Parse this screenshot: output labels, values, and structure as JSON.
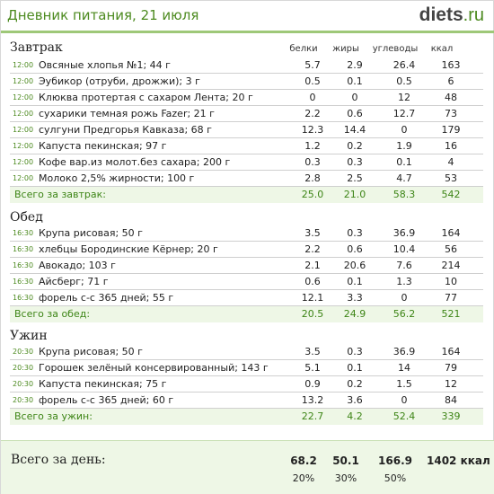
{
  "header": {
    "title": "Дневник питания, 21 июля",
    "logo_main": "diets",
    "logo_domain": ".ru"
  },
  "columns": [
    "белки",
    "жиры",
    "углеводы",
    "ккал"
  ],
  "colors": {
    "accent": "#4c8a1f",
    "total_bg": "#eef7e6"
  },
  "meals": [
    {
      "title": "Завтрак",
      "items": [
        {
          "time": "12:00",
          "name": "Овсяные хлопья №1; 44 г",
          "protein": "5.7",
          "fat": "2.9",
          "carbs": "26.4",
          "kcal": "163"
        },
        {
          "time": "12:00",
          "name": "Эубикор (отруби, дрожжи); 3 г",
          "protein": "0.5",
          "fat": "0.1",
          "carbs": "0.5",
          "kcal": "6"
        },
        {
          "time": "12:00",
          "name": "Клюква протертая с сахаром Лента; 20 г",
          "protein": "0",
          "fat": "0",
          "carbs": "12",
          "kcal": "48"
        },
        {
          "time": "12:00",
          "name": "сухарики темная рожь Fazer; 21 г",
          "protein": "2.2",
          "fat": "0.6",
          "carbs": "12.7",
          "kcal": "73"
        },
        {
          "time": "12:00",
          "name": "сулгуни Предгорья Кавказа; 68 г",
          "protein": "12.3",
          "fat": "14.4",
          "carbs": "0",
          "kcal": "179"
        },
        {
          "time": "12:00",
          "name": "Капуста пекинская; 97 г",
          "protein": "1.2",
          "fat": "0.2",
          "carbs": "1.9",
          "kcal": "16"
        },
        {
          "time": "12:00",
          "name": "Кофе вар.из молот.без сахара; 200 г",
          "protein": "0.3",
          "fat": "0.3",
          "carbs": "0.1",
          "kcal": "4"
        },
        {
          "time": "12:00",
          "name": "Молоко 2,5% жирности; 100 г",
          "protein": "2.8",
          "fat": "2.5",
          "carbs": "4.7",
          "kcal": "53"
        }
      ],
      "total": {
        "label": "Всего за завтрак:",
        "protein": "25.0",
        "fat": "21.0",
        "carbs": "58.3",
        "kcal": "542"
      }
    },
    {
      "title": "Обед",
      "items": [
        {
          "time": "16:30",
          "name": "Крупа рисовая; 50 г",
          "protein": "3.5",
          "fat": "0.3",
          "carbs": "36.9",
          "kcal": "164"
        },
        {
          "time": "16:30",
          "name": "хлебцы Бородинские Кёрнер; 20 г",
          "protein": "2.2",
          "fat": "0.6",
          "carbs": "10.4",
          "kcal": "56"
        },
        {
          "time": "16:30",
          "name": "Авокадо; 103 г",
          "protein": "2.1",
          "fat": "20.6",
          "carbs": "7.6",
          "kcal": "214"
        },
        {
          "time": "16:30",
          "name": "Айсберг; 71 г",
          "protein": "0.6",
          "fat": "0.1",
          "carbs": "1.3",
          "kcal": "10"
        },
        {
          "time": "16:30",
          "name": "форель с-с 365 дней; 55 г",
          "protein": "12.1",
          "fat": "3.3",
          "carbs": "0",
          "kcal": "77"
        }
      ],
      "total": {
        "label": "Всего за обед:",
        "protein": "20.5",
        "fat": "24.9",
        "carbs": "56.2",
        "kcal": "521"
      }
    },
    {
      "title": "Ужин",
      "items": [
        {
          "time": "20:30",
          "name": "Крупа рисовая; 50 г",
          "protein": "3.5",
          "fat": "0.3",
          "carbs": "36.9",
          "kcal": "164"
        },
        {
          "time": "20:30",
          "name": "Горошек зелёный консервированный; 143 г",
          "protein": "5.1",
          "fat": "0.1",
          "carbs": "14",
          "kcal": "79"
        },
        {
          "time": "20:30",
          "name": "Капуста пекинская; 75 г",
          "protein": "0.9",
          "fat": "0.2",
          "carbs": "1.5",
          "kcal": "12"
        },
        {
          "time": "20:30",
          "name": "форель с-с 365 дней; 60 г",
          "protein": "13.2",
          "fat": "3.6",
          "carbs": "0",
          "kcal": "84"
        }
      ],
      "total": {
        "label": "Всего за ужин:",
        "protein": "22.7",
        "fat": "4.2",
        "carbs": "52.4",
        "kcal": "339"
      }
    }
  ],
  "day_total": {
    "label": "Всего за день:",
    "protein": "68.2",
    "fat": "50.1",
    "carbs": "166.9",
    "kcal": "1402 ккал",
    "protein_pct": "20%",
    "fat_pct": "30%",
    "carbs_pct": "50%"
  }
}
